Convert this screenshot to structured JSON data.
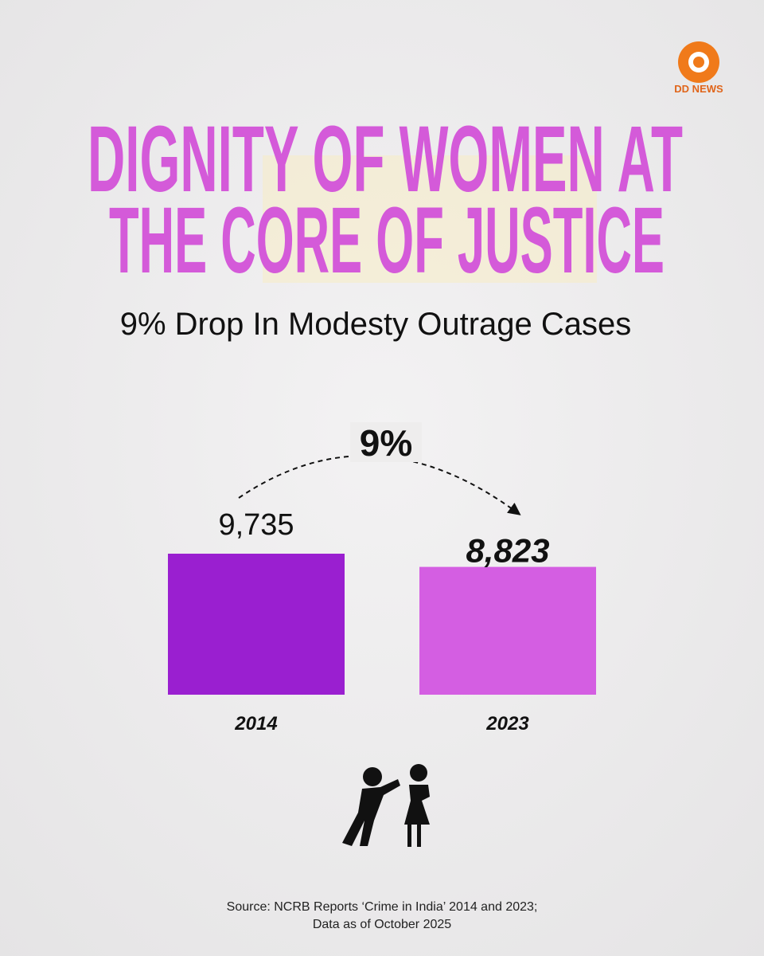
{
  "logo": "DD NEWS",
  "chart_data": {
    "type": "bar",
    "title": [
      "DIGNITY OF WOMEN AT",
      "THE CORE OF JUSTICE"
    ],
    "subtitle": "9% Drop In Modesty Outrage Cases",
    "annotation": "9%",
    "categories": [
      "2014",
      "2023"
    ],
    "values": [
      9735,
      8823
    ],
    "value_labels": [
      "9,735",
      "8,823"
    ],
    "colors": [
      "#9a1fd0",
      "#d45ee2"
    ],
    "title_color": "#d45ad9",
    "source": [
      "Source: NCRB Reports ‘Crime in India’ 2014 and 2023;",
      "Data as of October 2025"
    ]
  }
}
